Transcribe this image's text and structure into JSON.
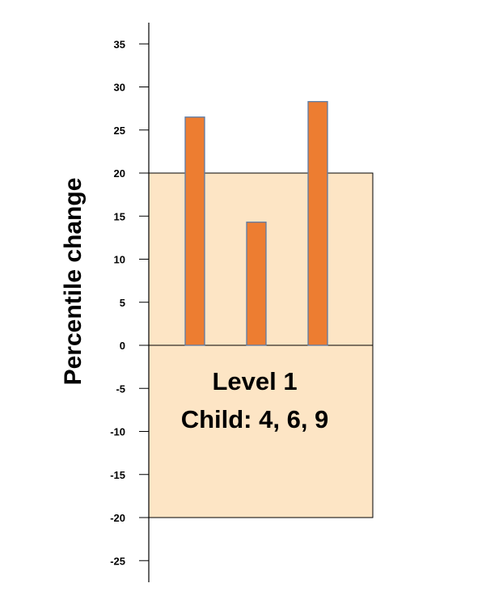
{
  "chart_data": {
    "type": "bar",
    "title": "",
    "xlabel": "",
    "ylabel": "Percentile change",
    "ylim": [
      -25,
      35
    ],
    "yticks": [
      35,
      30,
      25,
      20,
      15,
      10,
      5,
      0,
      -5,
      -10,
      -15,
      -20,
      -25
    ],
    "categories": [
      "",
      "",
      ""
    ],
    "values": [
      26.5,
      14.3,
      28.3
    ],
    "bar_color": "#ED7D31",
    "bar_edge_color": "#5B7DA8",
    "band": {
      "ymin": -20,
      "ymax": 20,
      "color": "#FDE5C5"
    },
    "band_text": [
      "Level 1",
      "Child: 4, 6, 9"
    ],
    "grid": false,
    "legend": "none"
  }
}
